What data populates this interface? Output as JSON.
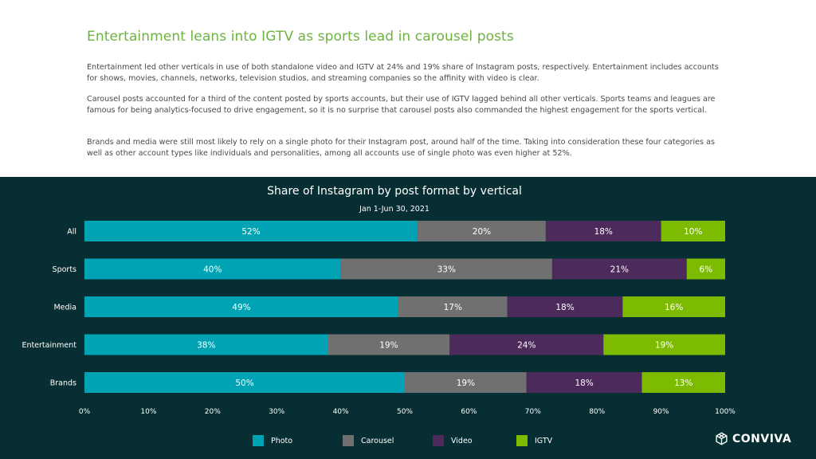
{
  "header": {
    "title": "Entertainment leans into IGTV as sports lead in carousel posts"
  },
  "paragraphs": [
    "Entertainment led other verticals in use of both standalone video and IGTV at 24% and 19% share of Instagram posts, respectively. Entertainment includes accounts for shows, movies, channels, networks, television studios, and streaming companies so the affinity with video is clear.",
    "Carousel posts accounted for a third of the content posted by sports accounts, but their use of IGTV lagged behind all other verticals. Sports teams and leagues are famous for being analytics-focused to drive engagement, so it is no surprise that carousel posts also commanded the highest engagement for the sports vertical.",
    "Brands and media were still most likely to rely on a single photo for their Instagram post, around half of the time. Taking into consideration these four categories as well as other account types like individuals and personalities, among all accounts use of single photo was even higher at 52%."
  ],
  "chart_data": {
    "type": "bar",
    "orientation": "horizontal",
    "stacked": true,
    "title": "Share of Instagram by post format by vertical",
    "subtitle": "Jan 1-Jun 30, 2021",
    "categories": [
      "All",
      "Sports",
      "Media",
      "Entertainment",
      "Brands"
    ],
    "series": [
      {
        "name": "Photo",
        "color": "#00a3b4",
        "values": [
          52,
          40,
          49,
          38,
          50
        ]
      },
      {
        "name": "Carousel",
        "color": "#707070",
        "values": [
          20,
          33,
          17,
          19,
          19
        ]
      },
      {
        "name": "Video",
        "color": "#4d2a5c",
        "values": [
          18,
          21,
          18,
          24,
          18
        ]
      },
      {
        "name": "IGTV",
        "color": "#7dbb00",
        "values": [
          10,
          6,
          16,
          19,
          13
        ]
      }
    ],
    "xlim": [
      0,
      100
    ],
    "xticks": [
      "0%",
      "10%",
      "20%",
      "30%",
      "40%",
      "50%",
      "60%",
      "70%",
      "80%",
      "90%",
      "100%"
    ],
    "value_suffix": "%",
    "legend_position": "bottom"
  },
  "brand": {
    "name": "CONVIVA",
    "color": "#ffffff"
  }
}
